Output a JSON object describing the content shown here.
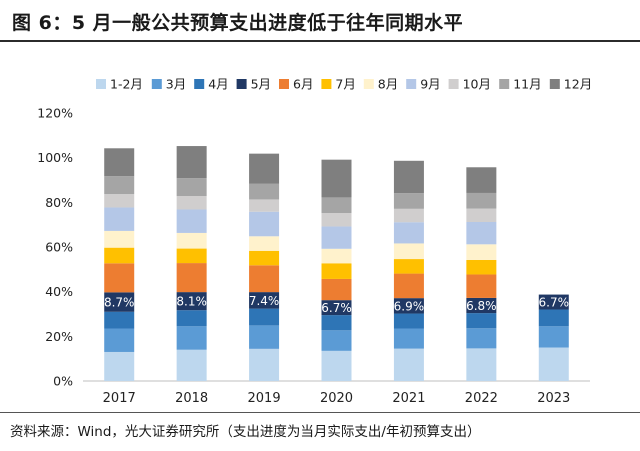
{
  "title": "图 6：5 月一般公共预算支出进度低于往年同期水平",
  "source": "资料来源：Wind，光大证券研究所（支出进度为当月实际支出/年初预算支出）",
  "chart_data": {
    "type": "bar",
    "stacked": true,
    "categories": [
      "2017",
      "2018",
      "2019",
      "2020",
      "2021",
      "2022",
      "2023"
    ],
    "ylim": [
      0,
      120
    ],
    "yticks": [
      0,
      20,
      40,
      60,
      80,
      100,
      120
    ],
    "ytick_labels": [
      "0%",
      "20%",
      "40%",
      "60%",
      "80%",
      "100%",
      "120%"
    ],
    "legend_position": "top",
    "series": [
      {
        "name": "1-2月",
        "color": "#bdd7ee",
        "values": [
          13.0,
          14.0,
          14.4,
          13.5,
          14.5,
          14.6,
          15.0
        ]
      },
      {
        "name": "3月",
        "color": "#5b9bd5",
        "values": [
          10.5,
          10.5,
          10.5,
          9.2,
          9.0,
          9.0,
          9.5
        ]
      },
      {
        "name": "4月",
        "color": "#2e75b6",
        "values": [
          7.5,
          7.2,
          7.5,
          6.8,
          6.7,
          6.8,
          7.5
        ]
      },
      {
        "name": "5月",
        "color": "#203864",
        "values": [
          8.7,
          8.1,
          7.4,
          6.7,
          6.9,
          6.8,
          6.7
        ]
      },
      {
        "name": "6月",
        "color": "#ed7d31",
        "values": [
          13.0,
          13.0,
          12.0,
          9.5,
          11.0,
          10.5,
          null
        ]
      },
      {
        "name": "7月",
        "color": "#ffc000",
        "values": [
          7.0,
          6.5,
          6.5,
          7.0,
          6.5,
          6.5,
          null
        ]
      },
      {
        "name": "8月",
        "color": "#fff2cc",
        "values": [
          7.5,
          7.0,
          6.5,
          6.5,
          7.0,
          7.0,
          null
        ]
      },
      {
        "name": "9月",
        "color": "#b4c7e7",
        "values": [
          10.5,
          10.5,
          11.0,
          10.0,
          9.5,
          10.0,
          null
        ]
      },
      {
        "name": "10月",
        "color": "#d0cece",
        "values": [
          6.0,
          6.0,
          5.5,
          6.0,
          6.0,
          6.0,
          null
        ]
      },
      {
        "name": "11月",
        "color": "#a5a5a5",
        "values": [
          8.0,
          8.0,
          7.0,
          7.0,
          7.0,
          7.0,
          null
        ]
      },
      {
        "name": "12月",
        "color": "#7f7f7f",
        "values": [
          12.5,
          14.4,
          13.5,
          16.9,
          14.5,
          11.5,
          null
        ]
      }
    ],
    "data_labels": {
      "series": "5月",
      "labels": [
        "8.7%",
        "8.1%",
        "7.4%",
        "6.7%",
        "6.9%",
        "6.8%",
        "6.7%"
      ]
    }
  }
}
